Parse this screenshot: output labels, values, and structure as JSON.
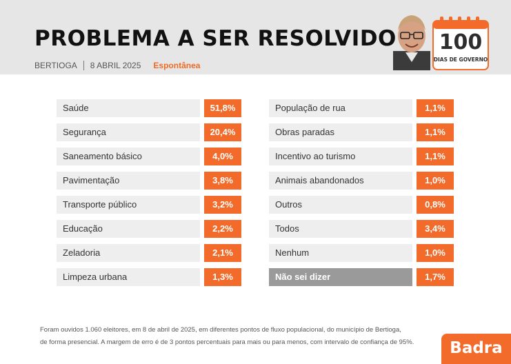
{
  "header": {
    "title": "PROBLEMA A SER RESOLVIDO",
    "city": "BERTIOGA",
    "date": "8 ABRIL 2025",
    "tag": "Espontânea",
    "calendar_number": "100",
    "calendar_label": "DIAS DE GOVERNO"
  },
  "chart_data": {
    "type": "table",
    "categories": [
      "Saúde",
      "Segurança",
      "Saneamento básico",
      "Pavimentação",
      "Transporte público",
      "Educação",
      "Zeladoria",
      "Limpeza urbana",
      "População de rua",
      "Obras paradas",
      "Incentivo ao turismo",
      "Animais abandonados",
      "Outros",
      "Todos",
      "Nenhum",
      "Não sei dizer"
    ],
    "values": [
      51.8,
      20.4,
      4.0,
      3.8,
      3.2,
      2.2,
      2.1,
      1.3,
      1.1,
      1.1,
      1.1,
      1.0,
      0.8,
      3.4,
      1.0,
      1.7
    ],
    "value_labels": [
      "51,8%",
      "20,4%",
      "4,0%",
      "3,8%",
      "3,2%",
      "2,2%",
      "2,1%",
      "1,3%",
      "1,1%",
      "1,1%",
      "1,1%",
      "1,0%",
      "0,8%",
      "3,4%",
      "1,0%",
      "1,7%"
    ],
    "highlighted_category": "Não sei dizer",
    "colors": {
      "value_box": "#f26b2b",
      "label_box": "#eeeeee",
      "highlight_box": "#9a9a9a"
    }
  },
  "footnote": {
    "line1": "Foram ouvidos 1.060 eleitores, em 8 de abril de 2025, em diferentes pontos de fluxo populacional, do município de Bertioga,",
    "line2": "de forma presencial. A margem de erro é de 3 pontos percentuais para mais ou para menos, com intervalo de confiança de 95%."
  },
  "brand": "Badra",
  "icons": {
    "avatar": "caricature-portrait",
    "calendar": "calendar-icon"
  }
}
